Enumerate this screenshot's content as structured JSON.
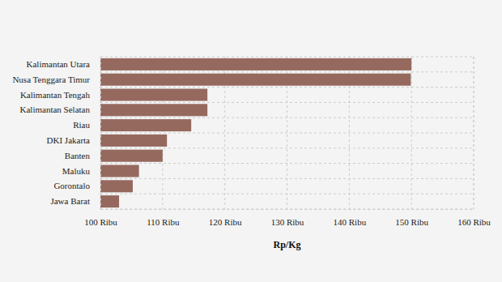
{
  "chart_data": {
    "type": "bar",
    "orientation": "horizontal",
    "categories": [
      "Kalimantan Utara",
      "Nusa Tenggara Timur",
      "Kalimantan Tengah",
      "Kalimantan Selatan",
      "Riau",
      "DKI Jakarta",
      "Banten",
      "Maluku",
      "Gorontalo",
      "Jawa Barat"
    ],
    "values": [
      150000,
      149900,
      117200,
      117200,
      114600,
      110700,
      110000,
      106200,
      105200,
      103000
    ],
    "color": "#96695f",
    "x_label": "Rp/Kg",
    "xlim": [
      100000,
      160000
    ],
    "xticks": [
      {
        "value": 100000,
        "label": "100 Ribu"
      },
      {
        "value": 110000,
        "label": "110 Ribu"
      },
      {
        "value": 120000,
        "label": "120 Ribu"
      },
      {
        "value": 130000,
        "label": "130 Ribu"
      },
      {
        "value": 140000,
        "label": "140 Ribu"
      },
      {
        "value": 150000,
        "label": "150 Ribu"
      },
      {
        "value": 160000,
        "label": "160 Ribu"
      }
    ],
    "grid": true
  }
}
